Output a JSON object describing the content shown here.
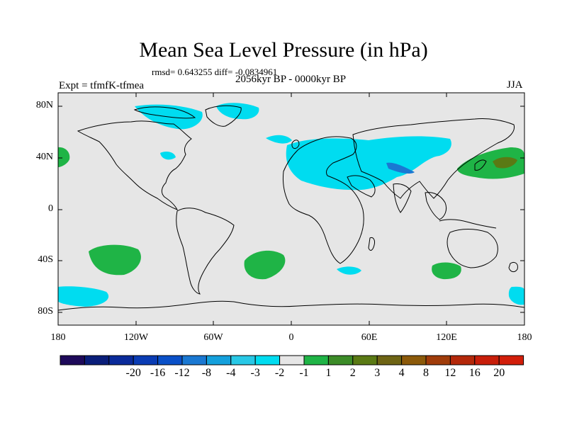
{
  "title": "Mean Sea Level Pressure (in hPa)",
  "stats": "rmsd= 0.643255 diff= -0.0834961",
  "period": "2056kyr BP - 0000kyr BP",
  "experiment": "Expt = tfmfK-tfmea",
  "season": "JJA",
  "lat_labels": [
    "80N",
    "40N",
    "0",
    "40S",
    "80S"
  ],
  "lon_labels": [
    "180",
    "120W",
    "60W",
    "0",
    "60E",
    "120E",
    "180"
  ],
  "colorbar": {
    "colors": [
      "#1e0a5a",
      "#0a1e7a",
      "#0a2a9a",
      "#0a3cb4",
      "#0a50c8",
      "#1a78d2",
      "#14a0dc",
      "#28c8e6",
      "#00dcf0",
      "#e6e6e6",
      "#1fb446",
      "#3c8c28",
      "#5a7a14",
      "#6e6414",
      "#8c5a0a",
      "#a03c0a",
      "#b4280a",
      "#c81e0a",
      "#d21e0a"
    ],
    "labels": [
      "-20",
      "-16",
      "-12",
      "-8",
      "-4",
      "-3",
      "-2",
      "-1",
      "1",
      "2",
      "3",
      "4",
      "8",
      "12",
      "16",
      "20"
    ]
  },
  "colors": {
    "land_bg": "#e6e6e6",
    "cyan": "#00dcf0",
    "green": "#1fb446",
    "darkgreen": "#5a7a14",
    "blue": "#1a78d2"
  }
}
